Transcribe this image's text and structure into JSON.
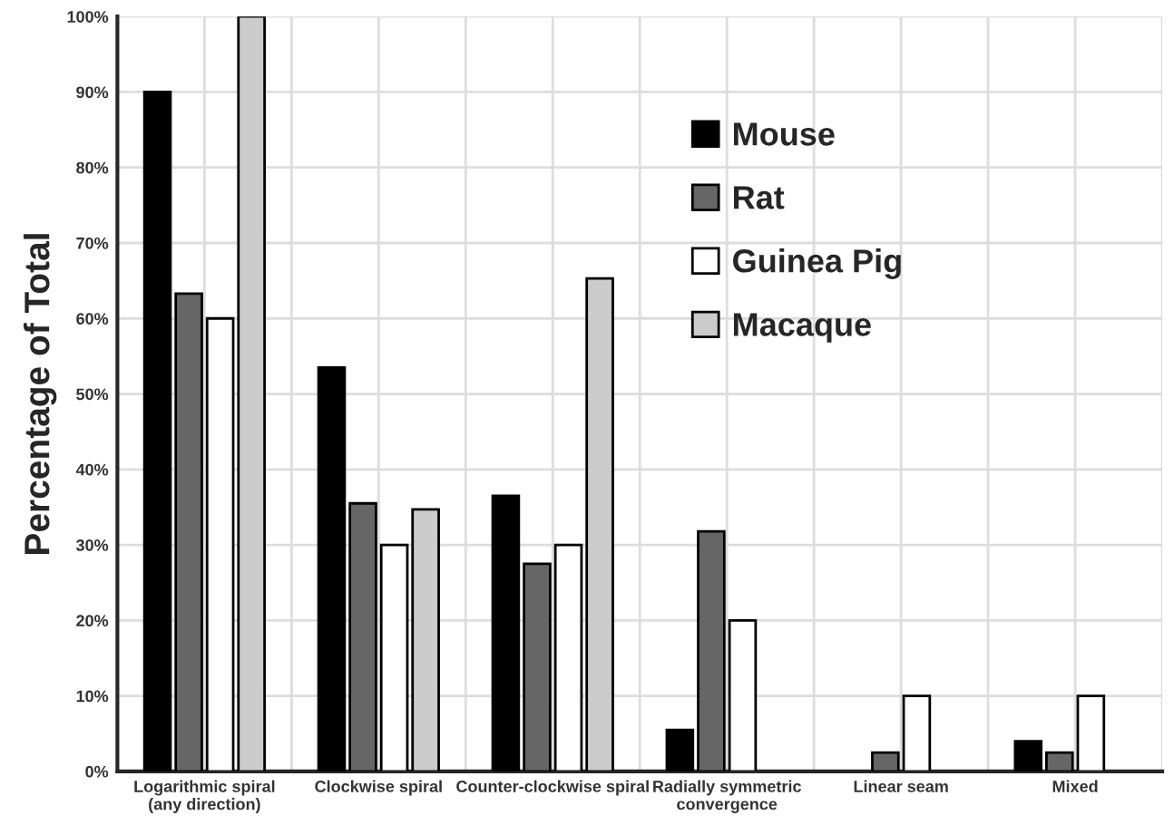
{
  "chart_data": {
    "type": "bar",
    "ylabel": "Percentage of Total",
    "categories": [
      "Logarithmic spiral\n(any direction)",
      "Clockwise spiral",
      "Counter-clockwise spiral",
      "Radially symmetric\nconvergence",
      "Linear seam",
      "Mixed"
    ],
    "series": [
      {
        "name": "Mouse",
        "color": "#000000",
        "values": [
          90,
          53.5,
          36.5,
          5.5,
          null,
          4
        ]
      },
      {
        "name": "Rat",
        "color": "#666666",
        "values": [
          63.3,
          35.5,
          27.5,
          31.8,
          2.5,
          2.5
        ]
      },
      {
        "name": "Guinea Pig",
        "color": "#ffffff",
        "values": [
          60,
          30,
          30,
          20,
          10,
          10
        ]
      },
      {
        "name": "Macaque",
        "color": "#cccccc",
        "values": [
          100,
          34.7,
          65.3,
          null,
          null,
          null
        ]
      }
    ],
    "ylim": [
      0,
      100
    ],
    "yticks": [
      {
        "value": 0,
        "label": "0%"
      },
      {
        "value": 10,
        "label": "10%"
      },
      {
        "value": 20,
        "label": "20%"
      },
      {
        "value": 30,
        "label": "30%"
      },
      {
        "value": 40,
        "label": "40%"
      },
      {
        "value": 50,
        "label": "50%"
      },
      {
        "value": 60,
        "label": "60%"
      },
      {
        "value": 70,
        "label": "70%"
      },
      {
        "value": 80,
        "label": "80%"
      },
      {
        "value": 90,
        "label": "90%"
      },
      {
        "value": 100,
        "label": "100%"
      }
    ],
    "grid": true,
    "legend": "top right"
  }
}
